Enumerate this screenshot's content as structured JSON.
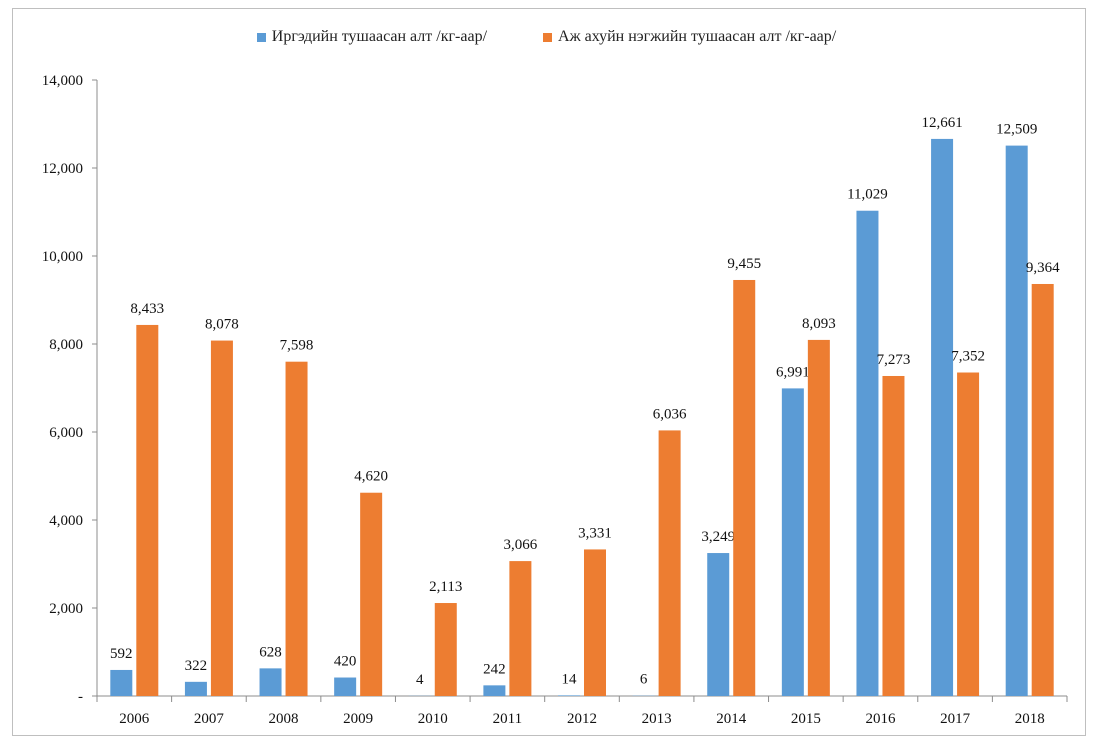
{
  "chart_data": {
    "type": "bar",
    "categories": [
      "2006",
      "2007",
      "2008",
      "2009",
      "2010",
      "2011",
      "2012",
      "2013",
      "2014",
      "2015",
      "2016",
      "2017",
      "2018"
    ],
    "series": [
      {
        "name": "Иргэдийн тушаасан алт /кг-аар/",
        "color": "#5b9bd5",
        "values": [
          592,
          322,
          628,
          420,
          4,
          242,
          14,
          6,
          3249,
          6991,
          11029,
          12661,
          12509
        ],
        "labels": [
          "592",
          "322",
          "628",
          "420",
          "4",
          "242",
          "14",
          "6",
          "3,249",
          "6,991",
          "11,029",
          "12,661",
          "12,509"
        ]
      },
      {
        "name": "Аж ахуйн нэгжийн тушаасан алт /кг-аар/",
        "color": "#ed7d31",
        "values": [
          8433,
          8078,
          7598,
          4620,
          2113,
          3066,
          3331,
          6036,
          9455,
          8093,
          7273,
          7352,
          9364
        ],
        "labels": [
          "8,433",
          "8,078",
          "7,598",
          "4,620",
          "2,113",
          "3,066",
          "3,331",
          "6,036",
          "9,455",
          "8,093",
          "7,273",
          "7,352",
          "9,364"
        ]
      }
    ],
    "ylim": [
      0,
      14000
    ],
    "yticks": [
      0,
      2000,
      4000,
      6000,
      8000,
      10000,
      12000,
      14000
    ],
    "ytick_labels": [
      "-",
      "2,000",
      "4,000",
      "6,000",
      "8,000",
      "10,000",
      "12,000",
      "14,000"
    ],
    "legend_position": "top",
    "grid": false
  }
}
